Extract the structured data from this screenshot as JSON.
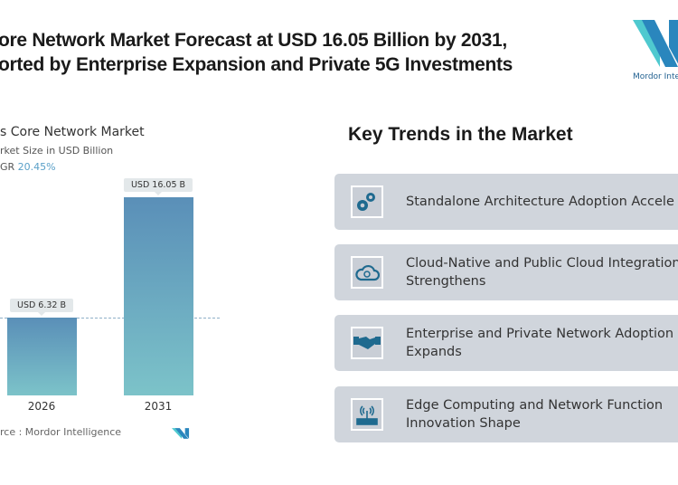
{
  "header": {
    "title_line1": "ore Network Market Forecast at USD 16.05 Billion by 2031,",
    "title_line2": "orted by Enterprise Expansion and Private 5G Investments",
    "logo_text": "Mordor Inte"
  },
  "chart": {
    "title": "s Core Network Market",
    "subtitle": "rket Size in USD Billion",
    "cagr_label": "GR",
    "cagr_value": "20.45%",
    "source": "rce :  Mordor Intelligence"
  },
  "chart_data": {
    "type": "bar",
    "categories": [
      "2026",
      "2031"
    ],
    "values": [
      6.32,
      16.05
    ],
    "data_labels": [
      "USD 6.32 B",
      "USD 16.05 B"
    ],
    "title": "s Core Network Market",
    "ylabel": "rket Size in USD Billion",
    "grid": false,
    "colors": {
      "bar_top": "#5a8fb8",
      "bar_bottom": "#7cc3c9"
    }
  },
  "trends": {
    "heading": "Key Trends in the Market",
    "items": [
      {
        "icon": "gears-icon",
        "line1": "Standalone Architecture Adoption Accele",
        "line2": ""
      },
      {
        "icon": "cloud-sync-icon",
        "line1": "Cloud-Native and Public Cloud Integration",
        "line2": "Strengthens"
      },
      {
        "icon": "handshake-icon",
        "line1": "Enterprise and Private Network Adoption",
        "line2": "Expands"
      },
      {
        "icon": "router-icon",
        "line1": "Edge Computing and Network Function",
        "line2": "Innovation Shape"
      }
    ]
  },
  "colors": {
    "accent": "#1f6a8f",
    "card_bg": "#d0d5dc",
    "cagr": "#5aa0c8"
  }
}
